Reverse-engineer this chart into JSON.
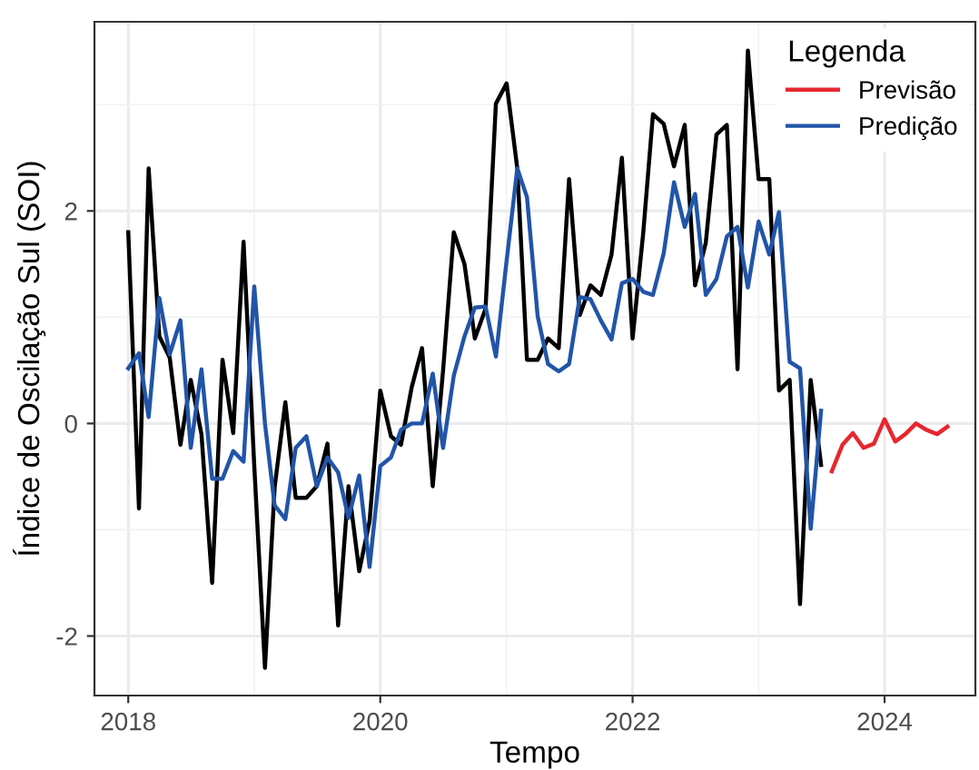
{
  "chart_data": {
    "type": "line",
    "xlabel": "Tempo",
    "ylabel": "Índice de Oscilação Sul (SOI)",
    "legend_title": "Legenda",
    "legend": "top right",
    "grid": true,
    "line_style": "solid",
    "xlim": [
      "2017-09-25",
      "2024-09-20"
    ],
    "xticks": [
      "2018",
      "2020",
      "2022",
      "2024"
    ],
    "ylim": [
      -2.56,
      3.78
    ],
    "yticks": [
      -2,
      0,
      2
    ],
    "series": [
      {
        "color": "#000000",
        "x": [
          "2018-01",
          "2018-02",
          "2018-03",
          "2018-04",
          "2018-05",
          "2018-06",
          "2018-07",
          "2018-08",
          "2018-09",
          "2018-10",
          "2018-11",
          "2018-12",
          "2019-01",
          "2019-02",
          "2019-03",
          "2019-04",
          "2019-05",
          "2019-06",
          "2019-07",
          "2019-08",
          "2019-09",
          "2019-10",
          "2019-11",
          "2019-12",
          "2020-01",
          "2020-02",
          "2020-03",
          "2020-04",
          "2020-05",
          "2020-06",
          "2020-07",
          "2020-08",
          "2020-09",
          "2020-10",
          "2020-11",
          "2020-12",
          "2021-01",
          "2021-02",
          "2021-03",
          "2021-04",
          "2021-05",
          "2021-06",
          "2021-07",
          "2021-08",
          "2021-09",
          "2021-10",
          "2021-11",
          "2021-12",
          "2022-01",
          "2022-02",
          "2022-03",
          "2022-04",
          "2022-05",
          "2022-06",
          "2022-07",
          "2022-08",
          "2022-09",
          "2022-10",
          "2022-11",
          "2022-12",
          "2023-01",
          "2023-02",
          "2023-03",
          "2023-04",
          "2023-05",
          "2023-06",
          "2023-07"
        ],
        "values": [
          1.8,
          -0.8,
          2.4,
          0.82,
          0.62,
          -0.2,
          0.41,
          -0.1,
          -1.5,
          0.6,
          -0.09,
          1.71,
          -0.4,
          -2.3,
          -0.6,
          0.2,
          -0.7,
          -0.7,
          -0.59,
          -0.19,
          -1.9,
          -0.59,
          -1.39,
          -0.92,
          0.31,
          -0.12,
          -0.2,
          0.34,
          0.71,
          -0.59,
          0.5,
          1.8,
          1.5,
          0.8,
          1.08,
          3.01,
          3.2,
          2.4,
          0.6,
          0.6,
          0.8,
          0.71,
          2.3,
          1.02,
          1.3,
          1.21,
          1.59,
          2.5,
          0.8,
          1.8,
          2.91,
          2.82,
          2.42,
          2.81,
          1.3,
          1.7,
          2.72,
          2.81,
          0.51,
          3.51,
          2.3,
          2.3,
          0.31,
          0.41,
          -1.7,
          0.41,
          -0.39
        ]
      },
      {
        "name": "Previsão",
        "color": "#e8262e",
        "x": [
          "2023-08",
          "2023-09",
          "2023-10",
          "2023-11",
          "2023-12",
          "2024-01",
          "2024-02",
          "2024-03",
          "2024-04",
          "2024-05",
          "2024-06",
          "2024-07"
        ],
        "values": [
          -0.45,
          -0.2,
          -0.09,
          -0.23,
          -0.19,
          0.04,
          -0.17,
          -0.1,
          0.0,
          -0.06,
          -0.1,
          -0.03
        ]
      },
      {
        "name": "Predição",
        "color": "#2155a8",
        "x": [
          "2018-01",
          "2018-02",
          "2018-03",
          "2018-04",
          "2018-05",
          "2018-06",
          "2018-07",
          "2018-08",
          "2018-09",
          "2018-10",
          "2018-11",
          "2018-12",
          "2019-01",
          "2019-02",
          "2019-03",
          "2019-04",
          "2019-05",
          "2019-06",
          "2019-07",
          "2019-08",
          "2019-09",
          "2019-10",
          "2019-11",
          "2019-12",
          "2020-01",
          "2020-02",
          "2020-03",
          "2020-04",
          "2020-05",
          "2020-06",
          "2020-07",
          "2020-08",
          "2020-09",
          "2020-10",
          "2020-11",
          "2020-12",
          "2021-01",
          "2021-02",
          "2021-03",
          "2021-04",
          "2021-05",
          "2021-06",
          "2021-07",
          "2021-08",
          "2021-09",
          "2021-10",
          "2021-11",
          "2021-12",
          "2022-01",
          "2022-02",
          "2022-03",
          "2022-04",
          "2022-05",
          "2022-06",
          "2022-07",
          "2022-08",
          "2022-09",
          "2022-10",
          "2022-11",
          "2022-12",
          "2023-01",
          "2023-02",
          "2023-03",
          "2023-04",
          "2023-05",
          "2023-06",
          "2023-07"
        ],
        "values": [
          0.52,
          0.66,
          0.06,
          1.18,
          0.65,
          0.97,
          -0.23,
          0.51,
          -0.52,
          -0.52,
          -0.26,
          -0.36,
          1.29,
          0.0,
          -0.77,
          -0.9,
          -0.23,
          -0.12,
          -0.59,
          -0.32,
          -0.46,
          -0.89,
          -0.49,
          -1.35,
          -0.4,
          -0.32,
          -0.06,
          0.0,
          0.0,
          0.47,
          -0.23,
          0.45,
          0.82,
          1.09,
          1.1,
          0.63,
          1.53,
          2.4,
          2.13,
          1.01,
          0.56,
          0.49,
          0.56,
          1.19,
          1.17,
          0.97,
          0.79,
          1.32,
          1.36,
          1.24,
          1.21,
          1.6,
          2.27,
          1.85,
          2.16,
          1.21,
          1.36,
          1.76,
          1.85,
          1.28,
          1.9,
          1.59,
          1.99,
          0.58,
          0.52,
          -0.99,
          0.12
        ]
      }
    ]
  }
}
